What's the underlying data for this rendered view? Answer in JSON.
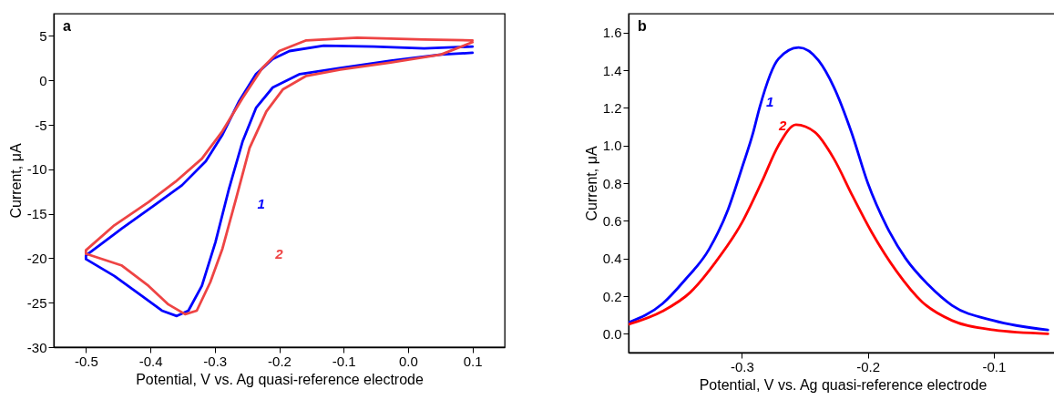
{
  "chart_data": [
    {
      "type": "line",
      "title": "a",
      "xlabel": "Potential, V vs. Ag quasi-reference electrode",
      "ylabel": "Current, μA",
      "xlim": [
        -0.55,
        0.15
      ],
      "ylim": [
        -30,
        7.5
      ],
      "xticks": [
        -0.5,
        -0.4,
        -0.3,
        -0.2,
        -0.1,
        {
          "value": 0,
          "label": "0.0"
        },
        0.1
      ],
      "yticks": [
        -30,
        -25,
        -20,
        -15,
        -10,
        -5,
        0,
        5
      ],
      "series": [
        {
          "color": "#0000ff",
          "x": [
            0.1,
            0.025,
            -0.053,
            -0.131,
            -0.184,
            -0.21,
            -0.236,
            -0.262,
            -0.288,
            -0.314,
            -0.351,
            -0.393,
            -0.445,
            -0.5,
            -0.5,
            -0.456,
            -0.414,
            -0.382,
            -0.359,
            -0.341,
            -0.32,
            -0.299,
            -0.278,
            -0.257,
            -0.236,
            -0.21,
            -0.168,
            -0.105,
            -0.027,
            0.051,
            0.1
          ],
          "values": [
            3.8,
            3.6,
            3.8,
            3.9,
            3.3,
            2.4,
            0.7,
            -2.3,
            -6.1,
            -9.1,
            -11.8,
            -14.0,
            -16.7,
            -19.7,
            -20.1,
            -22.0,
            -24.2,
            -25.9,
            -26.5,
            -25.9,
            -23.1,
            -18.2,
            -12.2,
            -6.9,
            -3.1,
            -0.8,
            0.7,
            1.4,
            2.2,
            2.9,
            3.1
          ]
        },
        {
          "color": "#ee4444",
          "x": [
            0.1,
            0.025,
            -0.079,
            -0.158,
            -0.2,
            -0.226,
            -0.257,
            -0.288,
            -0.32,
            -0.361,
            -0.403,
            -0.456,
            -0.5,
            -0.5,
            -0.445,
            -0.403,
            -0.372,
            -0.346,
            -0.328,
            -0.307,
            -0.288,
            -0.267,
            -0.246,
            -0.22,
            -0.194,
            -0.158,
            -0.105,
            -0.027,
            0.051,
            0.1
          ],
          "values": [
            4.5,
            4.6,
            4.8,
            4.5,
            3.3,
            1.4,
            -2.0,
            -5.7,
            -8.8,
            -11.4,
            -13.7,
            -16.3,
            -19.1,
            -19.5,
            -20.8,
            -23.1,
            -25.2,
            -26.3,
            -25.9,
            -22.7,
            -18.9,
            -13.3,
            -7.6,
            -3.5,
            -1.0,
            0.5,
            1.2,
            2.0,
            2.9,
            4.3
          ]
        }
      ],
      "annotations": [
        "1",
        "2"
      ]
    },
    {
      "type": "line",
      "title": "b",
      "xlabel": "Potential, V vs. Ag quasi-reference electrode",
      "ylabel": "Current, μA",
      "xlim": [
        -0.39,
        -0.05
      ],
      "ylim": [
        -0.1,
        1.7
      ],
      "xticks": [
        -0.3,
        -0.2,
        -0.1
      ],
      "yticks": [
        {
          "value": 0,
          "label": "0.0"
        },
        0.2,
        0.4,
        0.6,
        0.8,
        {
          "value": 1,
          "label": "1.0"
        },
        1.2,
        1.4,
        1.6
      ],
      "series": [
        {
          "color": "#0000ff",
          "x": [
            -0.39,
            -0.363,
            -0.346,
            -0.326,
            -0.311,
            -0.3,
            -0.291,
            -0.286,
            -0.271,
            -0.255,
            -0.239,
            -0.227,
            -0.213,
            -0.2,
            -0.185,
            -0.17,
            -0.152,
            -0.133,
            -0.1,
            -0.057
          ],
          "values": [
            0.06,
            0.16,
            0.28,
            0.45,
            0.66,
            0.88,
            1.07,
            1.2,
            1.46,
            1.52,
            1.45,
            1.31,
            1.07,
            0.8,
            0.57,
            0.4,
            0.26,
            0.15,
            0.07,
            0.02
          ]
        },
        {
          "color": "#ff0000",
          "x": [
            -0.39,
            -0.363,
            -0.341,
            -0.321,
            -0.3,
            -0.284,
            -0.271,
            -0.257,
            -0.242,
            -0.227,
            -0.212,
            -0.197,
            -0.177,
            -0.157,
            -0.133,
            -0.1,
            -0.057
          ],
          "values": [
            0.05,
            0.12,
            0.22,
            0.38,
            0.59,
            0.81,
            1.0,
            1.11,
            1.07,
            0.93,
            0.73,
            0.54,
            0.33,
            0.17,
            0.07,
            0.02,
            0.0
          ]
        }
      ],
      "annotations": [
        "1",
        "2"
      ]
    }
  ]
}
